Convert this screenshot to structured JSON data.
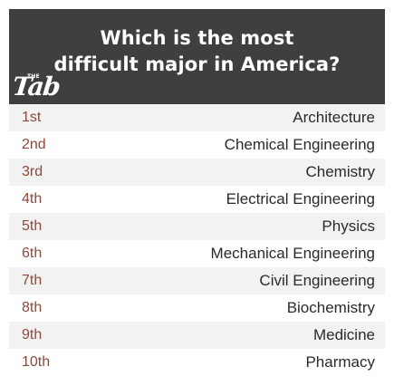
{
  "header": {
    "title_line1": "Which is the most",
    "title_line2": "difficult major in America?",
    "logo_text": "Tab",
    "logo_small": "THE"
  },
  "colors": {
    "header_bg": "#3f3f3f",
    "rank_text": "#8a4a3c",
    "row_alt_bg": "#f2f2f2"
  },
  "rankings": [
    {
      "rank": "1st",
      "major": "Architecture"
    },
    {
      "rank": "2nd",
      "major": "Chemical Engineering"
    },
    {
      "rank": "3rd",
      "major": "Chemistry"
    },
    {
      "rank": "4th",
      "major": "Electrical Engineering"
    },
    {
      "rank": "5th",
      "major": "Physics"
    },
    {
      "rank": "6th",
      "major": "Mechanical Engineering"
    },
    {
      "rank": "7th",
      "major": "Civil Engineering"
    },
    {
      "rank": "8th",
      "major": "Biochemistry"
    },
    {
      "rank": "9th",
      "major": "Medicine"
    },
    {
      "rank": "10th",
      "major": "Pharmacy"
    }
  ]
}
